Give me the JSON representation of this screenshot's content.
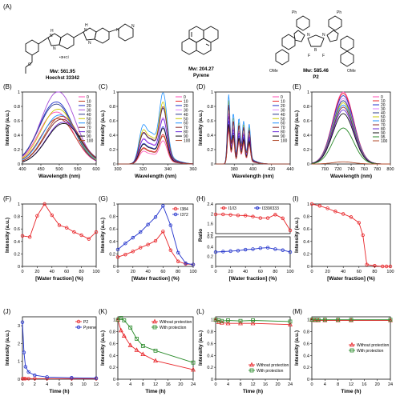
{
  "figure": {
    "panel_A_label": "(A)",
    "molecules": [
      {
        "name": "Hoechst 33342",
        "mw": "Mw: 561.95",
        "salt": "•3HCl"
      },
      {
        "name": "Pyrene",
        "mw": "Mw: 204.27"
      },
      {
        "name": "P2",
        "mw": "Mw: 585.46",
        "atoms": [
          "Ph",
          "Ph",
          "N",
          "B",
          "N",
          "F",
          "F",
          "OMe",
          "OMe"
        ]
      }
    ]
  },
  "colors": {
    "red": "#e8262a",
    "blue": "#2233cc",
    "green": "#2a8a2a",
    "black": "#111111"
  },
  "chart_data": [
    {
      "id": "B",
      "label": "(B)",
      "type": "line",
      "xlabel": "Wavelength (nm)",
      "ylabel": "Intensity (a.u.)",
      "xlim": [
        400,
        600
      ],
      "ylim": [
        0,
        1.0
      ],
      "xticks": [
        400,
        450,
        500,
        550,
        600
      ],
      "yticks": [
        0.0,
        0.2,
        0.4,
        0.6,
        0.8,
        1.0
      ],
      "legend_position": "top-right",
      "legend": [
        "0",
        "10",
        "20",
        "30",
        "40",
        "50",
        "60",
        "70",
        "80",
        "90",
        "100"
      ],
      "legend_colors": [
        "#ff4fb5",
        "#c23b22",
        "#2233cc",
        "#a64ed8",
        "#2b3c8b",
        "#c9c900",
        "#1e90ff",
        "#7a1f1f",
        "#6a2bd8",
        "#111111",
        "#b04a2a"
      ],
      "peaks": [
        {
          "series": "0",
          "x": 490,
          "y": 0.72
        },
        {
          "series": "10",
          "x": 495,
          "y": 0.63
        },
        {
          "series": "20",
          "x": 490,
          "y": 0.86
        },
        {
          "series": "30",
          "x": 495,
          "y": 1.0
        },
        {
          "series": "40",
          "x": 490,
          "y": 0.83
        },
        {
          "series": "50",
          "x": 495,
          "y": 0.76
        },
        {
          "series": "60",
          "x": 500,
          "y": 0.68
        },
        {
          "series": "70",
          "x": 505,
          "y": 0.62
        },
        {
          "series": "80",
          "x": 510,
          "y": 0.58
        },
        {
          "series": "90",
          "x": 510,
          "y": 0.56
        },
        {
          "series": "100",
          "x": 505,
          "y": 0.66
        }
      ],
      "peak_width_nm": 45
    },
    {
      "id": "C",
      "label": "(C)",
      "type": "line",
      "xlabel": "Wavelength (nm)",
      "ylabel": "Intensity (a.u.)",
      "xlim": [
        300,
        360
      ],
      "ylim": [
        0,
        1.0
      ],
      "xticks": [
        300,
        320,
        340,
        360
      ],
      "yticks": [
        0.0,
        0.2,
        0.4,
        0.6,
        0.8,
        1.0
      ],
      "legend_position": "top-right",
      "legend": [
        "0",
        "10",
        "20",
        "30",
        "40",
        "50",
        "60",
        "70",
        "80",
        "90",
        "100"
      ],
      "legend_colors": [
        "#ff4fb5",
        "#e8262a",
        "#2233cc",
        "#e080ff",
        "#2b3c8b",
        "#c9c900",
        "#1e90ff",
        "#8b2a2a",
        "#6a2bd8",
        "#111111",
        "#b04a2a"
      ],
      "peak_heights": [
        0.3,
        0.38,
        0.48,
        0.6,
        0.72,
        0.8,
        0.92,
        0.74,
        0.58,
        0.46,
        0.36
      ],
      "peak_positions": [
        320,
        327,
        336
      ]
    },
    {
      "id": "D",
      "label": "(D)",
      "type": "line",
      "xlabel": "Wavelength (nm)",
      "ylabel": "Intensity (a.u.)",
      "xlim": [
        360,
        440
      ],
      "ylim": [
        0,
        1.0
      ],
      "xticks": [
        380,
        400,
        420,
        440
      ],
      "yticks": [
        0.0,
        0.2,
        0.4,
        0.6,
        0.8,
        1.0
      ],
      "legend_position": "top-right",
      "legend": [
        "0",
        "10",
        "20",
        "30",
        "40",
        "50",
        "60",
        "70",
        "80",
        "90",
        "100"
      ],
      "legend_colors": [
        "#ff4fb5",
        "#e8262a",
        "#2233cc",
        "#e080ff",
        "#2b3c8b",
        "#c9c900",
        "#1e90ff",
        "#8b2a2a",
        "#6a2bd8",
        "#111111",
        "#b04a2a"
      ],
      "peak_heights": [
        0.45,
        0.52,
        0.6,
        0.7,
        0.8,
        0.88,
        0.96,
        0.82,
        0.66,
        0.55,
        0.48
      ],
      "peak_positions": [
        374,
        379,
        385,
        390,
        396
      ]
    },
    {
      "id": "E",
      "label": "(E)",
      "type": "line",
      "xlabel": "Wavelength (nm)",
      "ylabel": "Intensity (a.u.)",
      "xlim": [
        680,
        800
      ],
      "ylim": [
        0,
        1.0
      ],
      "xticks": [
        700,
        720,
        740,
        760,
        780,
        800
      ],
      "yticks": [
        0.0,
        0.2,
        0.4,
        0.6,
        0.8,
        1.0
      ],
      "legend_position": "top-right",
      "legend": [
        "0",
        "10",
        "20",
        "30",
        "40",
        "50",
        "60",
        "70",
        "80",
        "90",
        "95",
        "100"
      ],
      "legend_colors": [
        "#ff4fb5",
        "#e8262a",
        "#2233cc",
        "#e080ff",
        "#2b3c8b",
        "#c9c900",
        "#1e90ff",
        "#8b2a2a",
        "#6a2bd8",
        "#111111",
        "#2a8a2a",
        "#b04a2a"
      ],
      "peak_x": 728,
      "peak_heights": [
        1.0,
        0.98,
        0.95,
        0.91,
        0.88,
        0.85,
        0.82,
        0.79,
        0.75,
        0.7,
        0.5,
        0.03
      ]
    },
    {
      "id": "F",
      "label": "(F)",
      "type": "line",
      "xlabel": "[Water fraction] (%)",
      "ylabel": "Intensity (a.u.)",
      "xlim": [
        0,
        100
      ],
      "ylim": [
        0,
        1.0
      ],
      "xticks": [
        0,
        20,
        40,
        60,
        80,
        100
      ],
      "yticks": [
        0.0,
        0.2,
        0.4,
        0.6,
        0.8,
        1.0
      ],
      "series": [
        {
          "name": "",
          "color": "#e8262a",
          "x": [
            0,
            10,
            20,
            30,
            40,
            50,
            60,
            70,
            80,
            90,
            100
          ],
          "values": [
            0.49,
            0.47,
            0.81,
            1.0,
            0.82,
            0.66,
            0.62,
            0.55,
            0.5,
            0.44,
            0.55
          ]
        }
      ]
    },
    {
      "id": "G",
      "label": "(G)",
      "type": "line",
      "xlabel": "[Water fraction] (%)",
      "ylabel": "Intensity (a.u.)",
      "xlim": [
        0,
        100
      ],
      "ylim": [
        0,
        1.0
      ],
      "xticks": [
        0,
        20,
        40,
        60,
        80,
        100
      ],
      "yticks": [
        0.0,
        0.2,
        0.4,
        0.6,
        0.8,
        1.0
      ],
      "legend_position": "top-right",
      "series": [
        {
          "name": "I384",
          "color": "#e8262a",
          "x": [
            0,
            10,
            20,
            30,
            40,
            50,
            60,
            70,
            80,
            90,
            100
          ],
          "values": [
            0.15,
            0.19,
            0.24,
            0.3,
            0.35,
            0.41,
            0.56,
            0.26,
            0.08,
            0.04,
            0.03
          ]
        },
        {
          "name": "I372",
          "color": "#2233cc",
          "x": [
            0,
            10,
            20,
            30,
            40,
            50,
            60,
            70,
            80,
            90,
            100
          ],
          "values": [
            0.27,
            0.37,
            0.46,
            0.55,
            0.67,
            0.79,
            0.97,
            0.66,
            0.22,
            0.05,
            0.03
          ]
        }
      ]
    },
    {
      "id": "H",
      "label": "(H)",
      "type": "line",
      "xlabel": "[Water fraction] (%)",
      "ylabel": "Ratio",
      "xlim": [
        0,
        100
      ],
      "broken_axis": {
        "upper": [
          1.2,
          2.4
        ],
        "lower": [
          0.0,
          0.6
        ]
      },
      "upper_yticks": [
        1.2,
        1.6,
        2.0,
        2.4
      ],
      "lower_yticks": [
        0.0,
        0.2,
        0.4,
        0.6
      ],
      "xticks": [
        0,
        20,
        40,
        60,
        80,
        100
      ],
      "legend_position": "top",
      "series": [
        {
          "name": "I1/I3",
          "color": "#e8262a",
          "x": [
            0,
            10,
            20,
            30,
            40,
            50,
            60,
            70,
            80,
            90,
            100
          ],
          "values": [
            1.98,
            1.98,
            1.96,
            1.94,
            1.93,
            1.89,
            1.83,
            1.83,
            1.97,
            1.82,
            1.33
          ]
        },
        {
          "name": "I339/I333",
          "color": "#2233cc",
          "x": [
            0,
            10,
            20,
            30,
            40,
            50,
            60,
            70,
            80,
            90,
            100
          ],
          "values": [
            0.29,
            0.3,
            0.31,
            0.32,
            0.34,
            0.35,
            0.37,
            0.38,
            0.35,
            0.33,
            0.29
          ]
        }
      ]
    },
    {
      "id": "I",
      "label": "(I)",
      "type": "line",
      "xlabel": "[Water fraction] (%)",
      "ylabel": "Intensity (a.u.)",
      "xlim": [
        0,
        100
      ],
      "ylim": [
        0,
        1.0
      ],
      "xticks": [
        0,
        20,
        40,
        60,
        80,
        100
      ],
      "yticks": [
        0.0,
        0.2,
        0.4,
        0.6,
        0.8,
        1.0
      ],
      "series": [
        {
          "name": "",
          "color": "#e8262a",
          "x": [
            0,
            10,
            20,
            30,
            40,
            50,
            60,
            65,
            70,
            80,
            90,
            95,
            100
          ],
          "values": [
            1.0,
            0.97,
            0.93,
            0.88,
            0.84,
            0.79,
            0.7,
            0.5,
            0.03,
            0.01,
            0.0,
            0.0,
            0.0
          ]
        }
      ]
    },
    {
      "id": "J",
      "label": "(J)",
      "type": "line",
      "xlabel": "Time (h)",
      "ylabel": "Intensity (a.u.)",
      "xlim": [
        0,
        12
      ],
      "ylim": [
        0,
        3.5
      ],
      "xticks": [
        0,
        2,
        4,
        6,
        8,
        10,
        12
      ],
      "yticks": [
        0,
        1,
        2,
        3
      ],
      "legend_position": "top-right",
      "series": [
        {
          "name": "P2",
          "color": "#e8262a",
          "x": [
            0,
            0.25,
            0.5,
            1,
            2,
            4,
            8,
            12
          ],
          "values": [
            0.03,
            0.03,
            0.03,
            0.03,
            0.03,
            0.03,
            0.03,
            0.03
          ]
        },
        {
          "name": "Pyrene",
          "color": "#2233cc",
          "x": [
            0,
            0.25,
            0.5,
            1,
            2,
            4,
            8,
            12
          ],
          "values": [
            3.2,
            1.5,
            0.7,
            0.4,
            0.22,
            0.12,
            0.08,
            0.06
          ]
        }
      ]
    },
    {
      "id": "K",
      "label": "(K)",
      "type": "line",
      "xlabel": "Time (h)",
      "ylabel": "Intensity (a.u.)",
      "xlim": [
        0,
        24
      ],
      "ylim": [
        0,
        1.05
      ],
      "xticks": [
        0,
        4,
        8,
        12,
        16,
        20,
        24
      ],
      "yticks": [
        0.0,
        0.2,
        0.4,
        0.6,
        0.8,
        1.0
      ],
      "legend_position": "top-right",
      "series": [
        {
          "name": "Without protection",
          "color": "#e8262a",
          "x": [
            0,
            1,
            2,
            4,
            6,
            8,
            12,
            24
          ],
          "values": [
            1.0,
            0.82,
            0.73,
            0.57,
            0.49,
            0.42,
            0.31,
            0.16
          ]
        },
        {
          "name": "With protection",
          "color": "#2a8a2a",
          "x": [
            0,
            1,
            2,
            4,
            6,
            8,
            12,
            24
          ],
          "values": [
            1.0,
            1.03,
            0.99,
            0.87,
            0.68,
            0.56,
            0.48,
            0.28
          ]
        }
      ]
    },
    {
      "id": "L",
      "label": "(L)",
      "type": "line",
      "xlabel": "Time (h)",
      "ylabel": "Intensity (a.u.)",
      "xlim": [
        0,
        24
      ],
      "ylim": [
        0,
        1.05
      ],
      "xticks": [
        0,
        4,
        8,
        12,
        16,
        20,
        24
      ],
      "yticks": [
        0.0,
        0.2,
        0.4,
        0.6,
        0.8,
        1.0
      ],
      "legend_position": "bottom-right",
      "series": [
        {
          "name": "Without protection",
          "color": "#e8262a",
          "x": [
            0,
            1,
            2,
            4,
            8,
            12,
            24
          ],
          "values": [
            1.0,
            0.96,
            0.95,
            0.94,
            0.94,
            0.94,
            0.92
          ]
        },
        {
          "name": "With protection",
          "color": "#2a8a2a",
          "x": [
            0,
            1,
            2,
            4,
            8,
            12,
            24
          ],
          "values": [
            1.0,
            0.99,
            0.98,
            0.99,
            0.98,
            0.99,
            0.97
          ]
        }
      ]
    },
    {
      "id": "M",
      "label": "(M)",
      "type": "line",
      "xlabel": "Time (h)",
      "ylabel": "Intensity (a.u.)",
      "xlim": [
        0,
        24
      ],
      "ylim": [
        0,
        1.05
      ],
      "xticks": [
        0,
        4,
        8,
        12,
        16,
        20,
        24
      ],
      "yticks": [
        0.0,
        0.2,
        0.4,
        0.6,
        0.8,
        1.0
      ],
      "legend_position": "center-right",
      "series": [
        {
          "name": "Without protection",
          "color": "#e8262a",
          "x": [
            0,
            1,
            2,
            4,
            8,
            12,
            24
          ],
          "values": [
            1.0,
            0.99,
            0.99,
            0.99,
            0.99,
            0.99,
            0.99
          ]
        },
        {
          "name": "With protection",
          "color": "#2a8a2a",
          "x": [
            0,
            1,
            2,
            4,
            8,
            12,
            24
          ],
          "values": [
            1.0,
            1.0,
            1.0,
            1.0,
            1.0,
            1.0,
            1.0
          ]
        }
      ]
    }
  ]
}
